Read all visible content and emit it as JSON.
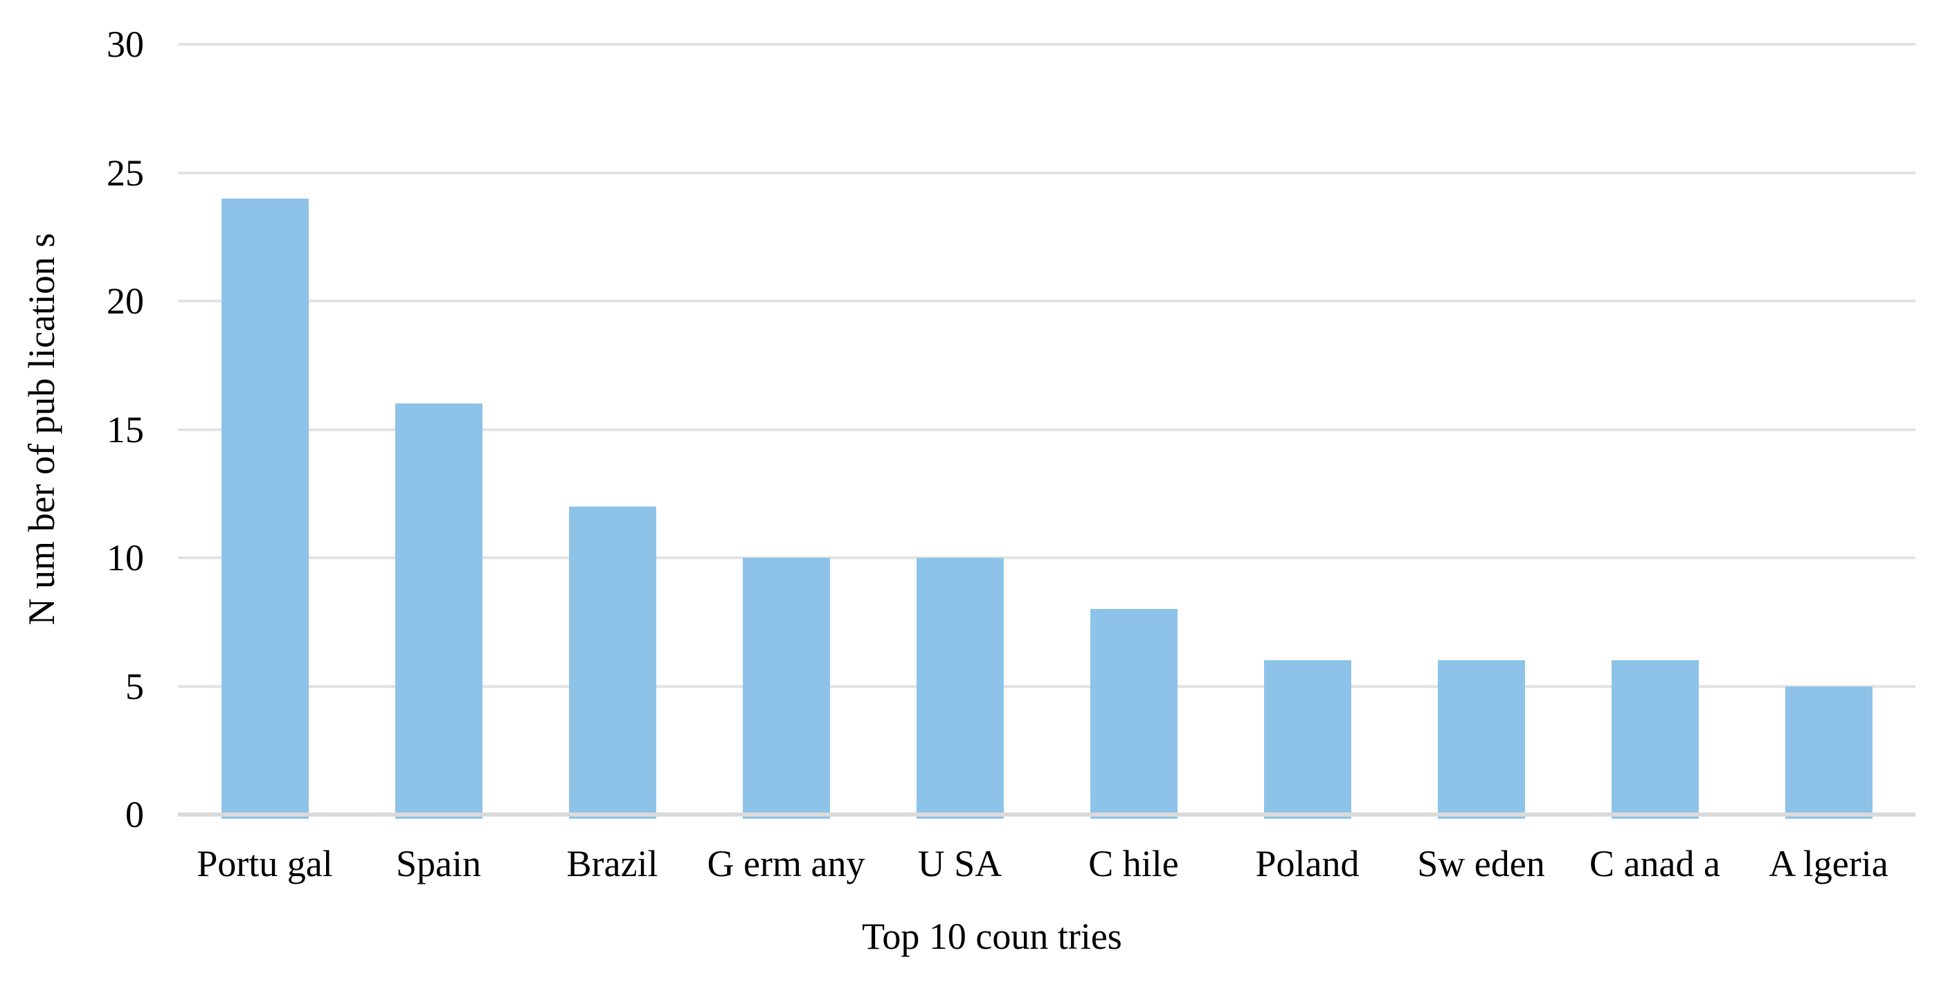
{
  "page": {
    "background": "#FFFFFF"
  },
  "chart_data": {
    "type": "bar",
    "title": "",
    "xlabel": "Top 10 countries",
    "xlabel_display": "Top 10 coun tries",
    "ylabel": "Number of publications",
    "ylabel_display": "N um ber of pub lication s",
    "categories": [
      "Portugal",
      "Spain",
      "Brazil",
      "Germany",
      "USA",
      "Chile",
      "Poland",
      "Sweden",
      "Canada",
      "Algeria"
    ],
    "categories_display": [
      "Portu gal",
      "Spain",
      "Brazil",
      "G erm any",
      "U SA",
      "C hile",
      "Poland",
      "Sw eden",
      "C anad a",
      "A lgeria"
    ],
    "values": [
      24,
      16,
      12,
      10,
      10,
      8,
      6,
      6,
      6,
      5
    ],
    "ylim": [
      0,
      30
    ],
    "yticks": [
      0,
      5,
      10,
      15,
      20,
      25,
      30
    ],
    "grid": "horizontal",
    "legend": "none",
    "colors": {
      "bar": "#8DC3E8",
      "gridline": "#E3E3E3",
      "axis_line": "#DADADA",
      "text": "#000000",
      "background": "#FFFFFF"
    }
  }
}
